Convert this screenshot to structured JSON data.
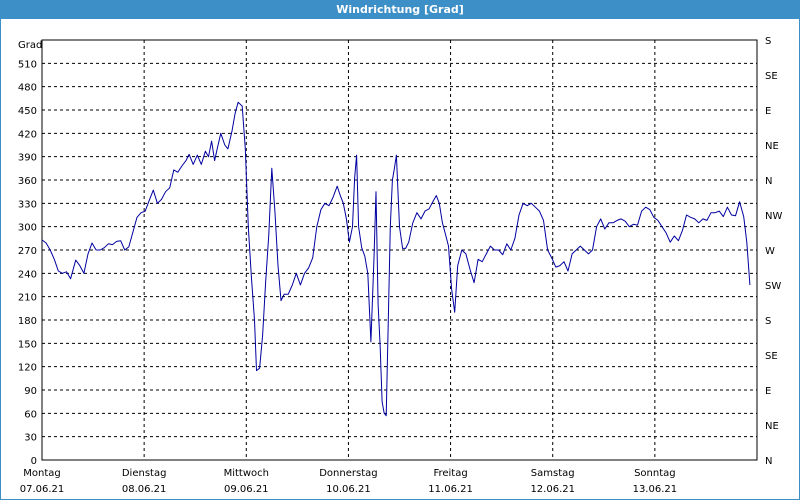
{
  "window": {
    "title": "Windrichtung [Grad]"
  },
  "chart_data": {
    "type": "line",
    "title": "Windrichtung [Grad]",
    "ylabel": "Grad",
    "ylim": [
      0,
      540
    ],
    "y_ticks": [
      0,
      30,
      60,
      90,
      120,
      150,
      180,
      210,
      240,
      270,
      300,
      330,
      360,
      390,
      420,
      450,
      480,
      510
    ],
    "right_axis_labels": [
      "N",
      "NE",
      "E",
      "SE",
      "S",
      "SW",
      "W",
      "NW",
      "N",
      "NE",
      "E",
      "SE",
      "S"
    ],
    "x_range_days": [
      0,
      7
    ],
    "x_ticks": [
      {
        "day": "Montag",
        "date": "07.06.21"
      },
      {
        "day": "Dienstag",
        "date": "08.06.21"
      },
      {
        "day": "Mittwoch",
        "date": "09.06.21"
      },
      {
        "day": "Donnerstag",
        "date": "10.06.21"
      },
      {
        "day": "Freitag",
        "date": "11.06.21"
      },
      {
        "day": "Samstag",
        "date": "12.06.21"
      },
      {
        "day": "Sonntag",
        "date": "13.06.21"
      }
    ],
    "grid": true,
    "colors": {
      "line": "#0000a0",
      "grid": "#000000",
      "title_bar": "#3d8fc7"
    },
    "series": [
      {
        "values": [
          [
            0.0,
            283
          ],
          [
            0.04,
            279
          ],
          [
            0.08,
            270
          ],
          [
            0.12,
            258
          ],
          [
            0.16,
            243
          ],
          [
            0.2,
            240
          ],
          [
            0.24,
            242
          ],
          [
            0.28,
            233
          ],
          [
            0.33,
            257
          ],
          [
            0.37,
            250
          ],
          [
            0.41,
            240
          ],
          [
            0.45,
            265
          ],
          [
            0.49,
            279
          ],
          [
            0.53,
            270
          ],
          [
            0.57,
            270
          ],
          [
            0.61,
            273
          ],
          [
            0.65,
            278
          ],
          [
            0.69,
            277
          ],
          [
            0.73,
            281
          ],
          [
            0.77,
            282
          ],
          [
            0.81,
            270
          ],
          [
            0.85,
            274
          ],
          [
            0.89,
            293
          ],
          [
            0.93,
            312
          ],
          [
            0.97,
            318
          ],
          [
            1.01,
            320
          ],
          [
            1.05,
            334
          ],
          [
            1.09,
            347
          ],
          [
            1.13,
            330
          ],
          [
            1.17,
            335
          ],
          [
            1.21,
            345
          ],
          [
            1.25,
            350
          ],
          [
            1.29,
            373
          ],
          [
            1.33,
            370
          ],
          [
            1.37,
            378
          ],
          [
            1.41,
            385
          ],
          [
            1.44,
            393
          ],
          [
            1.48,
            380
          ],
          [
            1.52,
            392
          ],
          [
            1.56,
            380
          ],
          [
            1.6,
            397
          ],
          [
            1.63,
            390
          ],
          [
            1.66,
            410
          ],
          [
            1.69,
            385
          ],
          [
            1.72,
            403
          ],
          [
            1.75,
            420
          ],
          [
            1.79,
            405
          ],
          [
            1.82,
            400
          ],
          [
            1.86,
            423
          ],
          [
            1.89,
            445
          ],
          [
            1.92,
            460
          ],
          [
            1.96,
            455
          ],
          [
            1.99,
            400
          ],
          [
            2.02,
            300
          ],
          [
            2.05,
            235
          ],
          [
            2.08,
            180
          ],
          [
            2.1,
            115
          ],
          [
            2.13,
            118
          ],
          [
            2.16,
            160
          ],
          [
            2.19,
            230
          ],
          [
            2.22,
            290
          ],
          [
            2.25,
            375
          ],
          [
            2.28,
            320
          ],
          [
            2.31,
            250
          ],
          [
            2.34,
            205
          ],
          [
            2.37,
            213
          ],
          [
            2.41,
            213
          ],
          [
            2.45,
            225
          ],
          [
            2.49,
            240
          ],
          [
            2.53,
            225
          ],
          [
            2.57,
            240
          ],
          [
            2.61,
            247
          ],
          [
            2.65,
            260
          ],
          [
            2.69,
            300
          ],
          [
            2.73,
            322
          ],
          [
            2.77,
            330
          ],
          [
            2.81,
            327
          ],
          [
            2.85,
            338
          ],
          [
            2.89,
            352
          ],
          [
            2.92,
            340
          ],
          [
            2.95,
            330
          ],
          [
            2.98,
            310
          ],
          [
            3.01,
            280
          ],
          [
            3.04,
            300
          ],
          [
            3.06,
            362
          ],
          [
            3.08,
            392
          ],
          [
            3.1,
            300
          ],
          [
            3.13,
            273
          ],
          [
            3.16,
            262
          ],
          [
            3.19,
            240
          ],
          [
            3.22,
            152
          ],
          [
            3.25,
            260
          ],
          [
            3.27,
            345
          ],
          [
            3.29,
            200
          ],
          [
            3.31,
            148
          ],
          [
            3.33,
            75
          ],
          [
            3.35,
            60
          ],
          [
            3.37,
            57
          ],
          [
            3.39,
            180
          ],
          [
            3.41,
            300
          ],
          [
            3.43,
            360
          ],
          [
            3.45,
            375
          ],
          [
            3.47,
            392
          ],
          [
            3.5,
            300
          ],
          [
            3.53,
            272
          ],
          [
            3.56,
            272
          ],
          [
            3.59,
            280
          ],
          [
            3.63,
            305
          ],
          [
            3.67,
            318
          ],
          [
            3.71,
            310
          ],
          [
            3.75,
            320
          ],
          [
            3.79,
            323
          ],
          [
            3.83,
            333
          ],
          [
            3.86,
            340
          ],
          [
            3.89,
            330
          ],
          [
            3.92,
            305
          ],
          [
            3.95,
            290
          ],
          [
            3.98,
            275
          ],
          [
            4.01,
            220
          ],
          [
            4.04,
            190
          ],
          [
            4.07,
            250
          ],
          [
            4.11,
            270
          ],
          [
            4.15,
            265
          ],
          [
            4.19,
            245
          ],
          [
            4.23,
            228
          ],
          [
            4.27,
            258
          ],
          [
            4.31,
            255
          ],
          [
            4.35,
            265
          ],
          [
            4.39,
            275
          ],
          [
            4.43,
            270
          ],
          [
            4.47,
            270
          ],
          [
            4.51,
            264
          ],
          [
            4.55,
            278
          ],
          [
            4.59,
            270
          ],
          [
            4.63,
            285
          ],
          [
            4.67,
            315
          ],
          [
            4.71,
            330
          ],
          [
            4.75,
            327
          ],
          [
            4.79,
            330
          ],
          [
            4.83,
            325
          ],
          [
            4.87,
            320
          ],
          [
            4.91,
            308
          ],
          [
            4.95,
            270
          ],
          [
            4.99,
            260
          ],
          [
            5.03,
            248
          ],
          [
            5.07,
            250
          ],
          [
            5.11,
            255
          ],
          [
            5.15,
            243
          ],
          [
            5.19,
            265
          ],
          [
            5.23,
            270
          ],
          [
            5.27,
            275
          ],
          [
            5.31,
            270
          ],
          [
            5.35,
            265
          ],
          [
            5.39,
            270
          ],
          [
            5.43,
            300
          ],
          [
            5.47,
            310
          ],
          [
            5.51,
            297
          ],
          [
            5.55,
            305
          ],
          [
            5.59,
            305
          ],
          [
            5.63,
            308
          ],
          [
            5.67,
            310
          ],
          [
            5.71,
            307
          ],
          [
            5.75,
            300
          ],
          [
            5.79,
            303
          ],
          [
            5.83,
            302
          ],
          [
            5.87,
            320
          ],
          [
            5.91,
            325
          ],
          [
            5.95,
            322
          ],
          [
            5.99,
            312
          ],
          [
            6.03,
            308
          ],
          [
            6.07,
            300
          ],
          [
            6.11,
            292
          ],
          [
            6.15,
            280
          ],
          [
            6.19,
            288
          ],
          [
            6.23,
            282
          ],
          [
            6.27,
            295
          ],
          [
            6.31,
            315
          ],
          [
            6.35,
            312
          ],
          [
            6.39,
            310
          ],
          [
            6.43,
            305
          ],
          [
            6.47,
            310
          ],
          [
            6.51,
            308
          ],
          [
            6.55,
            318
          ],
          [
            6.59,
            318
          ],
          [
            6.63,
            320
          ],
          [
            6.67,
            313
          ],
          [
            6.71,
            325
          ],
          [
            6.75,
            315
          ],
          [
            6.79,
            314
          ],
          [
            6.83,
            332
          ],
          [
            6.87,
            313
          ],
          [
            6.9,
            280
          ],
          [
            6.93,
            225
          ]
        ]
      }
    ]
  }
}
